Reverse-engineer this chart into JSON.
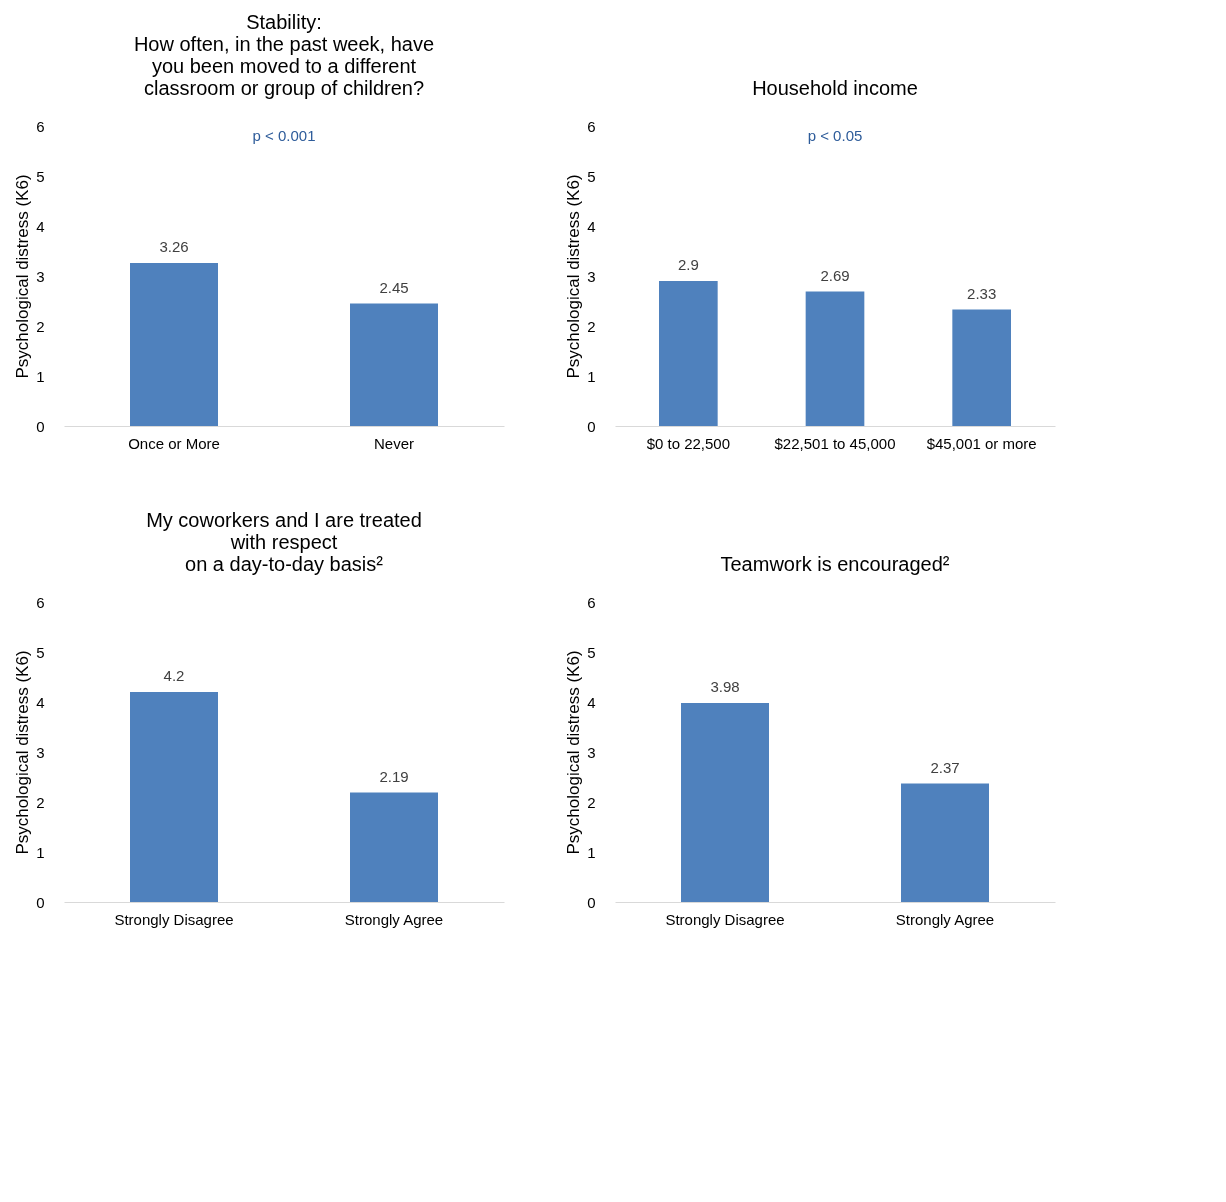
{
  "chart_data": [
    {
      "type": "bar",
      "title": "Stability:\nHow often, in the past week, have\nyou been moved to a different\nclassroom or group of children?",
      "ylabel": "Psychological distress (K6)",
      "categories": [
        "Once or More",
        "Never"
      ],
      "values": [
        3.26,
        2.45
      ],
      "color": "#4f81bd",
      "ylim": [
        0,
        6
      ],
      "yticks": [
        0,
        1,
        2,
        3,
        4,
        5,
        6
      ],
      "data_labels": true,
      "annotations": [
        "p < 0.001"
      ]
    },
    {
      "type": "bar",
      "title": "Household income",
      "ylabel": "Psychological distress (K6)",
      "categories": [
        "$0 to 22,500",
        "$22,501 to 45,000",
        "$45,001 or more"
      ],
      "values": [
        2.9,
        2.69,
        2.33
      ],
      "color": "#4f81bd",
      "ylim": [
        0,
        6
      ],
      "yticks": [
        0,
        1,
        2,
        3,
        4,
        5,
        6
      ],
      "data_labels": true,
      "annotations": [
        "p < 0.05"
      ]
    },
    {
      "type": "bar",
      "title": "My coworkers and I are treated\nwith respect\non a day-to-day basis²",
      "ylabel": "Psychological distress (K6)",
      "categories": [
        "Strongly Disagree",
        "Strongly Agree"
      ],
      "values": [
        4.2,
        2.19
      ],
      "color": "#4f81bd",
      "ylim": [
        0,
        6
      ],
      "yticks": [
        0,
        1,
        2,
        3,
        4,
        5,
        6
      ],
      "data_labels": true
    },
    {
      "type": "bar",
      "title": "Teamwork is encouraged²",
      "ylabel": "Psychological distress (K6)",
      "categories": [
        "Strongly Disagree",
        "Strongly Agree"
      ],
      "values": [
        3.98,
        2.37
      ],
      "color": "#4f81bd",
      "ylim": [
        0,
        6
      ],
      "yticks": [
        0,
        1,
        2,
        3,
        4,
        5,
        6
      ],
      "data_labels": true
    }
  ]
}
